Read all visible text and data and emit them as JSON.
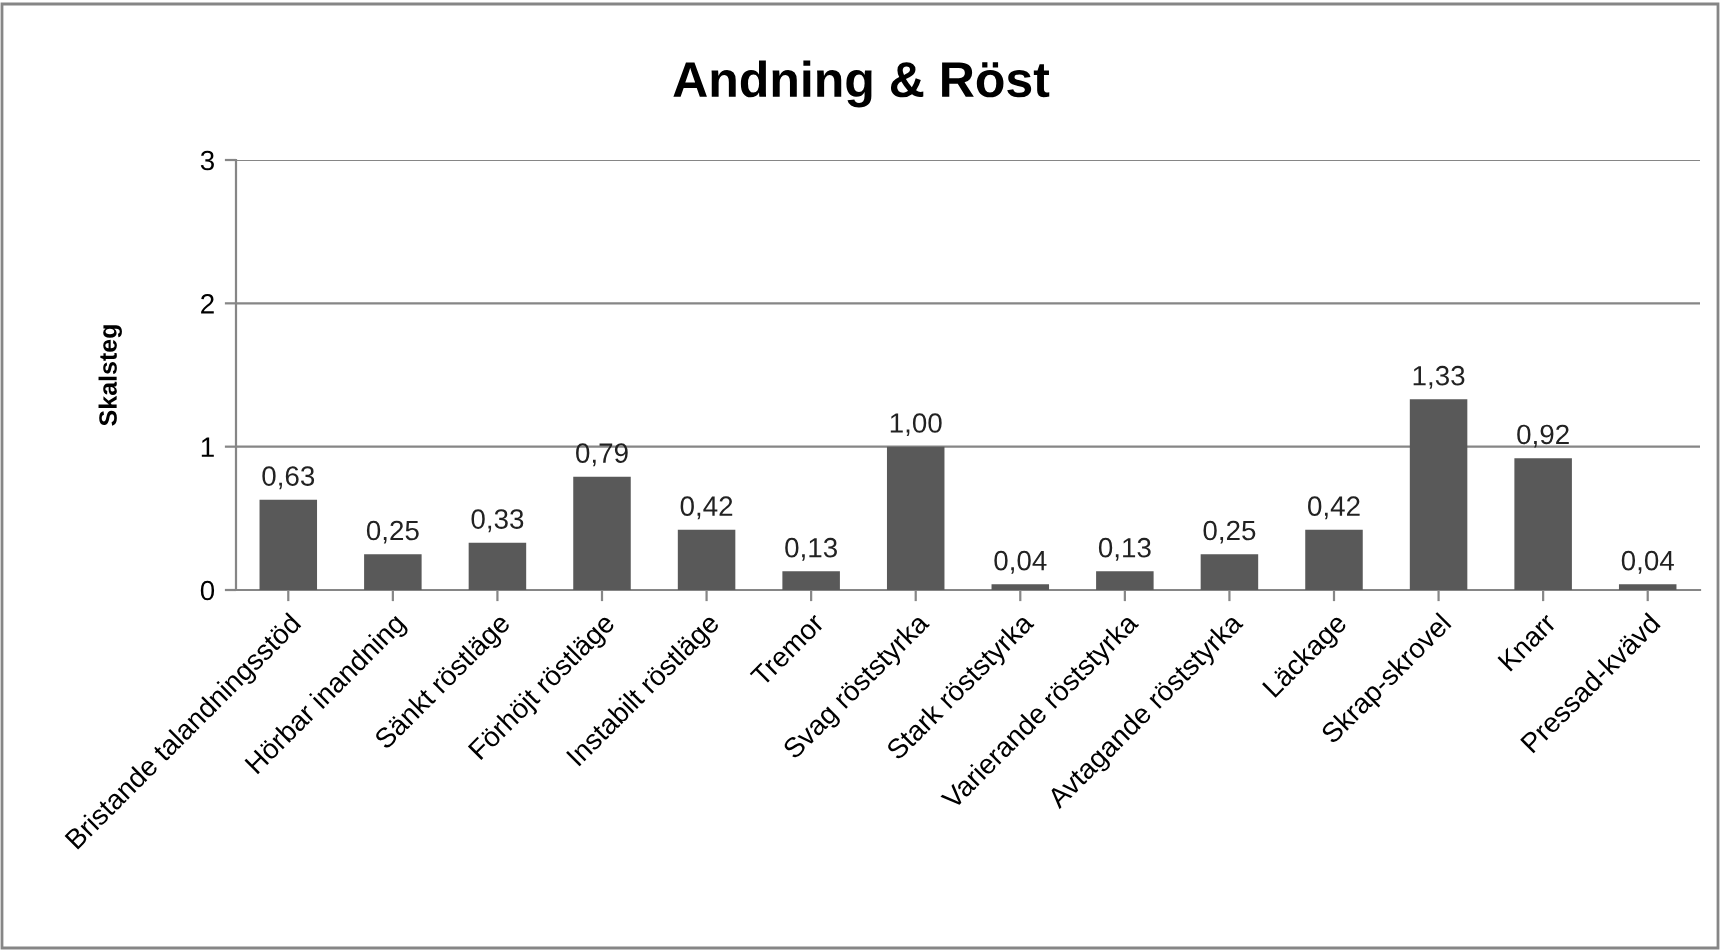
{
  "chart_data": {
    "type": "bar",
    "title": "Andning & Röst",
    "ylabel": "Skalsteg",
    "categories": [
      "Bristande talandningsstöd",
      "Hörbar inandning",
      "Sänkt röstläge",
      "Förhöjt röstläge",
      "Instabilt röstläge",
      "Tremor",
      "Svag röststyrka",
      "Stark röststyrka",
      "Varierande röststyrka",
      "Avtagande röststyrka",
      "Läckage",
      "Skrap-skrovel",
      "Knarr",
      "Pressad-kvävd"
    ],
    "values": [
      0.63,
      0.25,
      0.33,
      0.79,
      0.42,
      0.13,
      1.0,
      0.04,
      0.13,
      0.25,
      0.42,
      1.33,
      0.92,
      0.04
    ],
    "value_labels": [
      "0,63",
      "0,25",
      "0,33",
      "0,79",
      "0,42",
      "0,13",
      "1,00",
      "0,04",
      "0,13",
      "0,25",
      "0,42",
      "1,33",
      "0,92",
      "0,04"
    ],
    "color": "#595959",
    "ylim": [
      0,
      3
    ],
    "yticks": [
      0,
      1,
      2,
      3
    ],
    "grid": "y"
  }
}
